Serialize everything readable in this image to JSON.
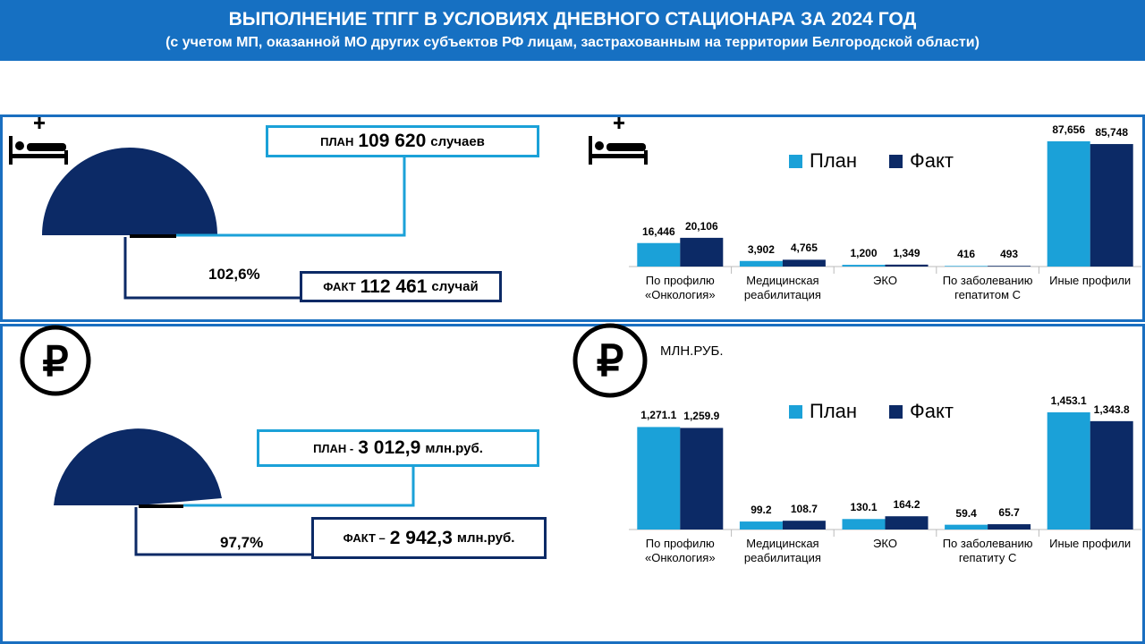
{
  "header": {
    "title": "ВЫПОЛНЕНИЕ ТПГГ В УСЛОВИЯХ ДНЕВНОГО СТАЦИОНАРА ЗА 2024 ГОД",
    "subtitle": "(с учетом МП, оказанной МО других субъектов РФ лицам, застрахованным на территории Белгородской области)"
  },
  "summary": [
    {
      "plan_label": "ПЛАН",
      "plan_value": "109 620",
      "plan_unit": "случаев",
      "fact_label": "ФАКТ",
      "fact_value": "112 461",
      "fact_unit": "случай",
      "percent": "102,6%"
    },
    {
      "plan_label": "ПЛАН -",
      "plan_value": "3 012,9",
      "plan_unit": "млн.руб.",
      "fact_label": "ФАКТ –",
      "fact_value": "2 942,3",
      "fact_unit": "млн.руб.",
      "percent": "97,7%"
    }
  ],
  "chart_data": [
    {
      "type": "bar",
      "categories": [
        "По профилю «Онкология»",
        "Медицинская реабилитация",
        "ЭКО",
        "По заболеванию гепатитом С",
        "Иные профили"
      ],
      "series": [
        {
          "name": "План",
          "color": "#1ba1d8",
          "values": [
            16446,
            3902,
            1200,
            416,
            87656
          ],
          "value_labels": [
            "16,446",
            "3,902",
            "1,200",
            "416",
            "87,656"
          ]
        },
        {
          "name": "Факт",
          "color": "#0c2a66",
          "values": [
            20106,
            4765,
            1349,
            493,
            85748
          ],
          "value_labels": [
            "20,106",
            "4,765",
            "1,349",
            "493",
            "85,748"
          ]
        }
      ]
    },
    {
      "type": "bar",
      "unit": "МЛН.РУБ.",
      "categories": [
        "По профилю «Онкология»",
        "Медицинская реабилитация",
        "ЭКО",
        "По заболеванию гепатиту С",
        "Иные профили"
      ],
      "series": [
        {
          "name": "План",
          "color": "#1ba1d8",
          "values": [
            1271.1,
            99.2,
            130.1,
            59.4,
            1453.1
          ],
          "value_labels": [
            "1,271.1",
            "99.2",
            "130.1",
            "59.4",
            "1,453.1"
          ]
        },
        {
          "name": "Факт",
          "color": "#0c2a66",
          "values": [
            1259.9,
            108.7,
            164.2,
            65.7,
            1343.8
          ],
          "value_labels": [
            "1,259.9",
            "108.7",
            "164.2",
            "65.7",
            "1,343.8"
          ]
        }
      ]
    }
  ]
}
